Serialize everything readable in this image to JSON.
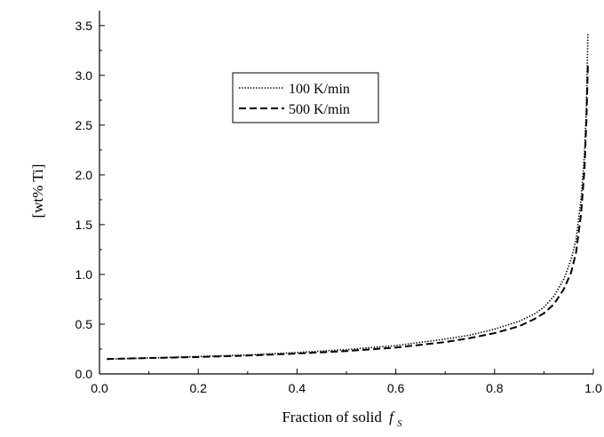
{
  "chart_data": {
    "type": "line",
    "title": "",
    "xlabel": "Fraction of solid",
    "xlabel_symbol": "f",
    "xlabel_subscript": "S",
    "ylabel": "[wt% Ti]",
    "xlim": [
      0.0,
      1.0
    ],
    "ylim": [
      0.0,
      3.65
    ],
    "xticks": [
      "0.0",
      "0.2",
      "0.4",
      "0.6",
      "0.8",
      "1.0"
    ],
    "yticks": [
      "0.0",
      "0.5",
      "1.0",
      "1.5",
      "2.0",
      "2.5",
      "3.0",
      "3.5"
    ],
    "grid": false,
    "legend_position": "upper-center",
    "series": [
      {
        "name": "100 K/min",
        "line_style": "dotted",
        "color": "#000000",
        "points": [
          [
            0.015,
            0.15
          ],
          [
            0.1,
            0.16
          ],
          [
            0.2,
            0.175
          ],
          [
            0.3,
            0.19
          ],
          [
            0.4,
            0.215
          ],
          [
            0.5,
            0.245
          ],
          [
            0.6,
            0.285
          ],
          [
            0.7,
            0.35
          ],
          [
            0.75,
            0.39
          ],
          [
            0.8,
            0.45
          ],
          [
            0.85,
            0.53
          ],
          [
            0.88,
            0.6
          ],
          [
            0.9,
            0.67
          ],
          [
            0.92,
            0.78
          ],
          [
            0.94,
            0.95
          ],
          [
            0.955,
            1.15
          ],
          [
            0.965,
            1.35
          ],
          [
            0.975,
            1.75
          ],
          [
            0.982,
            2.2
          ],
          [
            0.986,
            2.7
          ],
          [
            0.989,
            3.42
          ]
        ]
      },
      {
        "name": "500 K/min",
        "line_style": "dashed",
        "color": "#000000",
        "points": [
          [
            0.015,
            0.15
          ],
          [
            0.1,
            0.16
          ],
          [
            0.2,
            0.17
          ],
          [
            0.3,
            0.185
          ],
          [
            0.4,
            0.205
          ],
          [
            0.5,
            0.23
          ],
          [
            0.6,
            0.265
          ],
          [
            0.7,
            0.32
          ],
          [
            0.75,
            0.36
          ],
          [
            0.8,
            0.41
          ],
          [
            0.85,
            0.48
          ],
          [
            0.88,
            0.55
          ],
          [
            0.9,
            0.61
          ],
          [
            0.92,
            0.7
          ],
          [
            0.94,
            0.85
          ],
          [
            0.955,
            1.02
          ],
          [
            0.965,
            1.22
          ],
          [
            0.975,
            1.6
          ],
          [
            0.982,
            2.05
          ],
          [
            0.986,
            2.55
          ],
          [
            0.989,
            3.1
          ]
        ]
      }
    ]
  }
}
